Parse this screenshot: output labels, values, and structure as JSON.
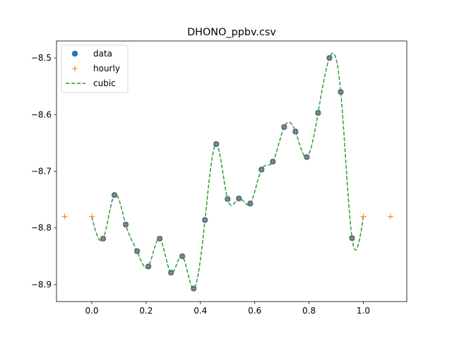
{
  "chart_data": {
    "type": "line",
    "title": "DHONO_ppbv.csv",
    "xlabel": "",
    "ylabel": "",
    "xlim": [
      -0.13,
      1.16
    ],
    "ylim": [
      -8.93,
      -8.47
    ],
    "x_ticks": [
      0.0,
      0.2,
      0.4,
      0.6,
      0.8,
      1.0
    ],
    "x_tick_labels": [
      "0.0",
      "0.2",
      "0.4",
      "0.6",
      "0.8",
      "1.0"
    ],
    "y_ticks": [
      -8.9,
      -8.8,
      -8.7,
      -8.6,
      -8.5
    ],
    "y_tick_labels": [
      "−8.9",
      "−8.8",
      "−8.7",
      "−8.6",
      "−8.5"
    ],
    "grid": false,
    "legend_position": "top-left",
    "series": [
      {
        "name": "data",
        "style": "markers-circle",
        "color": "#1f77b4",
        "x": [
          0.0417,
          0.0833,
          0.125,
          0.1667,
          0.2083,
          0.25,
          0.2917,
          0.3333,
          0.375,
          0.4167,
          0.4583,
          0.5,
          0.5417,
          0.5833,
          0.625,
          0.6667,
          0.7083,
          0.75,
          0.7917,
          0.8333,
          0.875,
          0.9167,
          0.9583
        ],
        "y": [
          -8.819,
          -8.742,
          -8.794,
          -8.841,
          -8.868,
          -8.819,
          -8.879,
          -8.85,
          -8.907,
          -8.786,
          -8.652,
          -8.749,
          -8.748,
          -8.757,
          -8.697,
          -8.683,
          -8.622,
          -8.63,
          -8.675,
          -8.597,
          -8.5,
          -8.56,
          -8.818
        ]
      },
      {
        "name": "hourly",
        "style": "markers-plus",
        "color": "#ff7f0e",
        "x": [
          -0.1,
          0.0,
          0.0417,
          0.0833,
          0.125,
          0.1667,
          0.2083,
          0.25,
          0.2917,
          0.3333,
          0.375,
          0.4167,
          0.4583,
          0.5,
          0.5417,
          0.5833,
          0.625,
          0.6667,
          0.7083,
          0.75,
          0.7917,
          0.8333,
          0.875,
          0.9167,
          0.9583,
          1.0,
          1.1
        ],
        "y": [
          -8.78,
          -8.78,
          -8.819,
          -8.742,
          -8.794,
          -8.841,
          -8.868,
          -8.819,
          -8.879,
          -8.85,
          -8.907,
          -8.786,
          -8.652,
          -8.749,
          -8.748,
          -8.757,
          -8.697,
          -8.683,
          -8.622,
          -8.63,
          -8.675,
          -8.597,
          -8.5,
          -8.56,
          -8.818,
          -8.78,
          -8.78
        ]
      },
      {
        "name": "cubic",
        "style": "dashed-line",
        "color": "#2ca02c",
        "x": [
          0.0,
          0.0417,
          0.0833,
          0.125,
          0.1667,
          0.2083,
          0.25,
          0.2917,
          0.3333,
          0.375,
          0.4167,
          0.4583,
          0.5,
          0.5417,
          0.5833,
          0.625,
          0.6667,
          0.7083,
          0.75,
          0.7917,
          0.8333,
          0.875,
          0.9167,
          0.9583,
          1.0
        ],
        "y": [
          -8.78,
          -8.819,
          -8.742,
          -8.794,
          -8.841,
          -8.868,
          -8.819,
          -8.879,
          -8.85,
          -8.907,
          -8.786,
          -8.652,
          -8.749,
          -8.748,
          -8.757,
          -8.697,
          -8.683,
          -8.622,
          -8.63,
          -8.675,
          -8.597,
          -8.5,
          -8.56,
          -8.818,
          -8.78
        ]
      }
    ]
  }
}
